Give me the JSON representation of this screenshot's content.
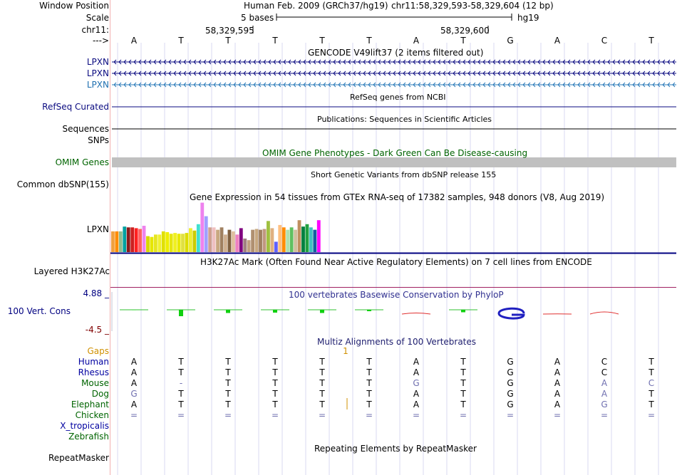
{
  "labels": {
    "window_position": "Window Position",
    "scale": "Scale",
    "chrom": "chr11:",
    "arrow": "--->",
    "lpxn1": "LPXN",
    "lpxn2": "LPXN",
    "lpxn3": "LPXN",
    "refseq": "RefSeq Curated",
    "sequences": "Sequences",
    "snps": "SNPs",
    "omim": "OMIM Genes",
    "common_dbsnp": "Common dbSNP(155)",
    "gtex_lpxn": "LPXN",
    "h3k27ac": "Layered H3K27Ac",
    "cons_max": "4.88 _",
    "cons_label": "100 Vert. Cons",
    "cons_min": "-4.5 _",
    "gaps": "Gaps",
    "repeatmasker": "RepeatMasker"
  },
  "header": {
    "assembly": "Human Feb. 2009 (GRCh37/hg19)",
    "position": "chr11:58,329,593-58,329,604 (12 bp)",
    "scale_text": "5 bases",
    "scale_db": "hg19",
    "coord1": "58,329,595",
    "coord2": "58,329,600"
  },
  "track_titles": {
    "gencode": "GENCODE V49lift37 (2 items filtered out)",
    "refseq": "RefSeq genes from NCBI",
    "publications": "Publications: Sequences in Scientific Articles",
    "omim": "OMIM Gene Phenotypes - Dark Green Can Be Disease-causing",
    "snp": "Short Genetic Variants from dbSNP release 155",
    "gtex": "Gene Expression in 54 tissues from GTEx RNA-seq of 17382 samples, 948 donors (V8, Aug 2019)",
    "h3k27ac": "H3K27Ac Mark (Often Found Near Active Regulatory Elements) on 7 cell lines from ENCODE",
    "phylop": "100 vertebrates Basewise Conservation by PhyloP",
    "multiz": "Multiz Alignments of 100 Vertebrates",
    "repeat": "Repeating Elements by RepeatMasker"
  },
  "bases": [
    "A",
    "T",
    "T",
    "T",
    "T",
    "T",
    "A",
    "T",
    "G",
    "A",
    "C",
    "T"
  ],
  "gap_count": "1",
  "alignment": [
    {
      "species": "Human",
      "color": "#0000a0",
      "seq": [
        "A",
        "T",
        "T",
        "T",
        "T",
        "T",
        "A",
        "T",
        "G",
        "A",
        "C",
        "T"
      ]
    },
    {
      "species": "Rhesus",
      "color": "#0000a0",
      "seq": [
        "A",
        "T",
        "T",
        "T",
        "T",
        "T",
        "A",
        "T",
        "G",
        "A",
        "C",
        "T"
      ]
    },
    {
      "species": "Mouse",
      "color": "#006400",
      "seq": [
        "A",
        "-",
        "T",
        "T",
        "T",
        "T",
        "G",
        "T",
        "G",
        "A",
        "A",
        "C"
      ]
    },
    {
      "species": "Dog",
      "color": "#006400",
      "seq": [
        "G",
        "T",
        "T",
        "T",
        "T",
        "T",
        "A",
        "T",
        "G",
        "A",
        "A",
        "T"
      ]
    },
    {
      "species": "Elephant",
      "color": "#006400",
      "seq": [
        "A",
        "T",
        "T",
        "T",
        "T",
        "T",
        "A",
        "T",
        "G",
        "A",
        "G",
        "T"
      ]
    },
    {
      "species": "Chicken",
      "color": "#006400",
      "seq": [
        "=",
        "=",
        "=",
        "=",
        "=",
        "=",
        "=",
        "=",
        "=",
        "=",
        "=",
        "="
      ]
    },
    {
      "species": "X_tropicalis",
      "color": "#0000a0",
      "seq": [
        "",
        "",
        "",
        "",
        "",
        "",
        "",
        "",
        "",
        "",
        "",
        ""
      ]
    },
    {
      "species": "Zebrafish",
      "color": "#006400",
      "seq": [
        "",
        "",
        "",
        "",
        "",
        "",
        "",
        "",
        "",
        "",
        "",
        ""
      ]
    }
  ],
  "gtex_values": [
    26,
    26,
    26,
    32,
    31,
    31,
    30,
    29,
    33,
    20,
    19,
    22,
    22,
    26,
    25,
    23,
    24,
    23,
    23,
    24,
    30,
    27,
    35,
    62,
    45,
    31,
    31,
    28,
    31,
    22,
    28,
    26,
    22,
    30,
    17,
    15,
    28,
    29,
    28,
    29,
    39,
    30,
    13,
    34,
    31,
    28,
    31,
    28,
    40,
    32,
    35,
    31,
    28,
    40
  ],
  "gtex_colors": [
    "#f0a040",
    "#ff8c00",
    "#8fbc8f",
    "#00a0a0",
    "#8b1a1a",
    "#cc2020",
    "#ff2020",
    "#ff6060",
    "#ee82ee",
    "#d8d800",
    "#e6e600",
    "#e6e620",
    "#f0f030",
    "#e0e000",
    "#eeee00",
    "#e6e610",
    "#f0f020",
    "#e8e800",
    "#e0e040",
    "#dddd00",
    "#eeee30",
    "#cccc00",
    "#40e0d0",
    "#ee82ee",
    "#a0a0ff",
    "#d0a090",
    "#f0c0c0",
    "#c8a880",
    "#a08060",
    "#d0b090",
    "#806040",
    "#e0c0a0",
    "#f080c0",
    "#800080",
    "#a08080",
    "#c0a080",
    "#b09070",
    "#c8a880",
    "#a08060",
    "#c09880",
    "#a0c040",
    "#e0b080",
    "#6060ff",
    "#ffc080",
    "#ff8c00",
    "#b0e0b0",
    "#60c060",
    "#d0c0a0",
    "#c09060",
    "#008040",
    "#20a040",
    "#40c0c0",
    "#1060a0",
    "#ff00ff"
  ]
}
